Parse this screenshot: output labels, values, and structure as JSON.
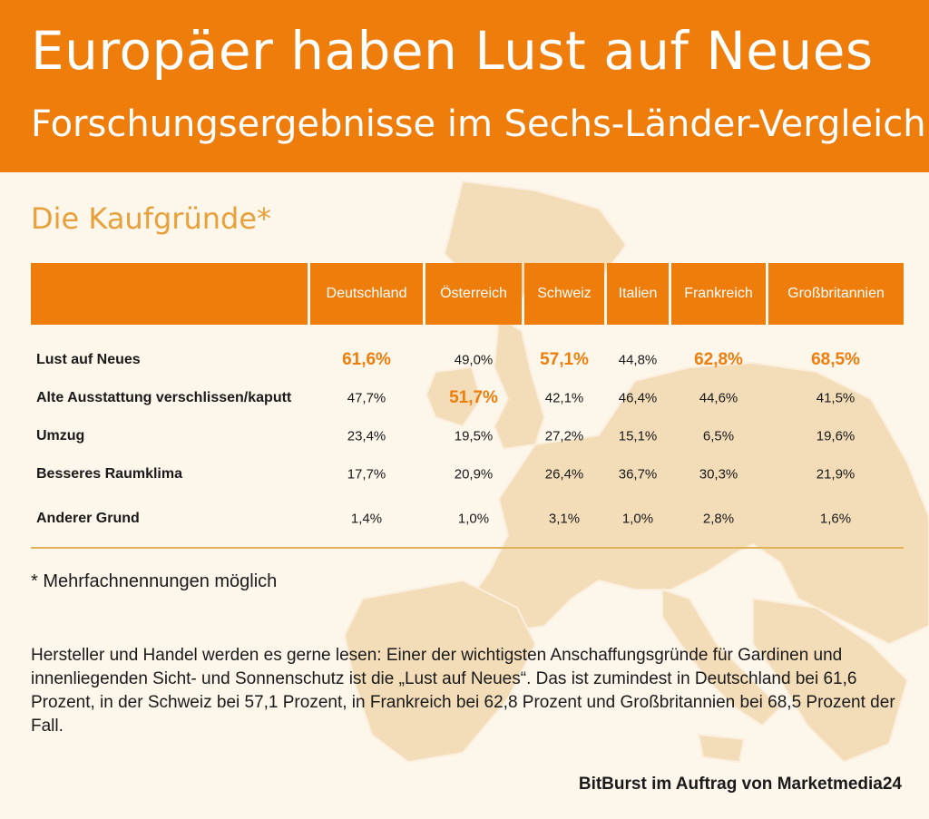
{
  "header": {
    "title": "Europäer haben Lust auf Neues",
    "subtitle": "Forschungsergebnisse im Sechs-Länder-Vergleich"
  },
  "section_title": "Die Kaufgründe*",
  "colors": {
    "accent": "#ef7d0c",
    "background": "#fdf6ea",
    "section_title": "#e8a03a",
    "map": "#f3dcb8"
  },
  "chart_data": {
    "type": "table",
    "columns": [
      "Deutschland",
      "Österreich",
      "Schweiz",
      "Italien",
      "Frankreich",
      "Großbritannien"
    ],
    "rows": [
      {
        "label": "Lust auf Neues",
        "values": [
          "61,6%",
          "49,0%",
          "57,1%",
          "44,8%",
          "62,8%",
          "68,5%"
        ],
        "highlight": [
          true,
          false,
          true,
          false,
          true,
          true
        ]
      },
      {
        "label": "Alte Ausstattung verschlissen/kaputt",
        "values": [
          "47,7%",
          "51,7%",
          "42,1%",
          "46,4%",
          "44,6%",
          "41,5%"
        ],
        "highlight": [
          false,
          true,
          false,
          false,
          false,
          false
        ]
      },
      {
        "label": "Umzug",
        "values": [
          "23,4%",
          "19,5%",
          "27,2%",
          "15,1%",
          "6,5%",
          "19,6%"
        ],
        "highlight": [
          false,
          false,
          false,
          false,
          false,
          false
        ]
      },
      {
        "label": "Besseres Raumklima",
        "values": [
          "17,7%",
          "20,9%",
          "26,4%",
          "36,7%",
          "30,3%",
          "21,9%"
        ],
        "highlight": [
          false,
          false,
          false,
          false,
          false,
          false
        ]
      },
      {
        "label": "Anderer Grund",
        "values": [
          "1,4%",
          "1,0%",
          "3,1%",
          "1,0%",
          "2,8%",
          "1,6%"
        ],
        "highlight": [
          false,
          false,
          false,
          false,
          false,
          false
        ]
      }
    ]
  },
  "footnote": "* Mehrfachnennungen möglich",
  "body_text": "Hersteller und Handel werden es gerne lesen: Einer der wichtigsten Anschaffungsgründe für Gardinen und innenliegenden Sicht- und Sonnenschutz ist die „Lust auf Neues“. Das ist zumindest in Deutschland bei 61,6 Prozent, in der Schweiz bei 57,1 Prozent, in Frankreich bei 62,8 Prozent und Großbritannien bei 68,5 Prozent der Fall.",
  "source": "BitBurst im Auftrag von Marketmedia24"
}
